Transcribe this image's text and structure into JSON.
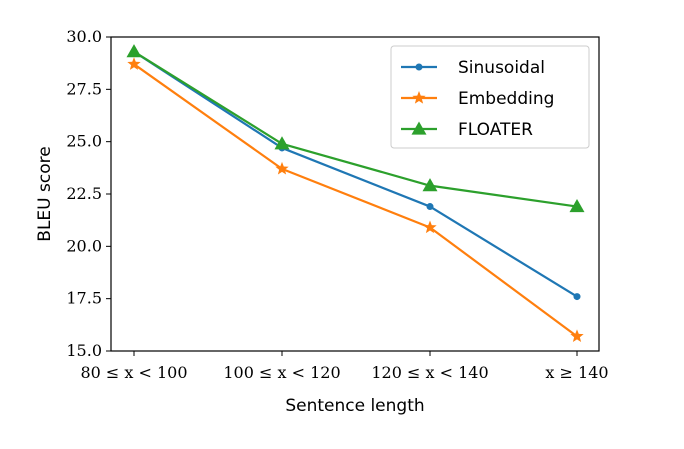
{
  "chart_data": {
    "type": "line",
    "xlabel": "Sentence length",
    "ylabel": "BLEU score",
    "categories": [
      "80 ≤ x < 100",
      "100 ≤ x < 120",
      "120 ≤ x < 140",
      "x ≥ 140"
    ],
    "ylim": [
      15.0,
      30.0
    ],
    "yticks": [
      "15.0",
      "17.5",
      "20.0",
      "22.5",
      "25.0",
      "27.5",
      "30.0"
    ],
    "grid": false,
    "legend_position": "top-right",
    "series": [
      {
        "name": "Sinusoidal",
        "color": "#1f77b4",
        "marker": "circle",
        "values": [
          29.3,
          24.7,
          21.9,
          17.6
        ]
      },
      {
        "name": "Embedding",
        "color": "#ff7f0e",
        "marker": "star",
        "values": [
          28.7,
          23.7,
          20.9,
          15.7
        ]
      },
      {
        "name": "FLOATER",
        "color": "#2ca02c",
        "marker": "triangle",
        "values": [
          29.3,
          24.9,
          22.9,
          21.9
        ]
      }
    ]
  }
}
